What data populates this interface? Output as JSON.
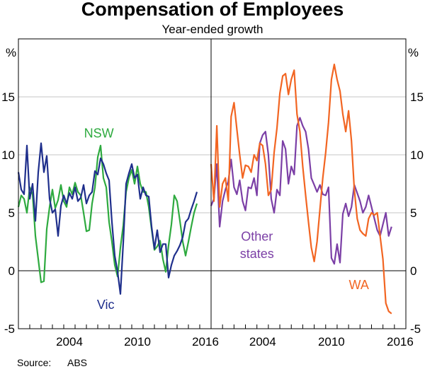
{
  "colors": {
    "nsw": "#2eaa3f",
    "vic": "#1f2f8c",
    "other": "#7b3fa6",
    "wa": "#f26522",
    "grid": "#c4c4c4",
    "axis": "#000000"
  },
  "source": {
    "label": "Source:",
    "value": "ABS"
  },
  "chart_data": {
    "type": "line",
    "title": "Compensation of Employees",
    "subtitle": "Year-ended growth",
    "unit_left": "%",
    "unit_right": "%",
    "ylim": [
      -5,
      20
    ],
    "y_ticks": [
      "-5",
      "0",
      "5",
      "10",
      "15"
    ],
    "x_range": [
      2000.0,
      2017.0
    ],
    "x_ticks": [
      "2004",
      "2010",
      "2016"
    ],
    "grid": true,
    "panels": [
      {
        "series": [
          {
            "name": "NSW",
            "color_key": "nsw",
            "x": [
              2000.0,
              2000.25,
              2000.5,
              2000.75,
              2001.0,
              2001.25,
              2001.5,
              2001.75,
              2002.0,
              2002.25,
              2002.5,
              2002.75,
              2003.0,
              2003.25,
              2003.5,
              2003.75,
              2004.0,
              2004.25,
              2004.5,
              2004.75,
              2005.0,
              2005.25,
              2005.5,
              2005.75,
              2006.0,
              2006.25,
              2006.5,
              2006.75,
              2007.0,
              2007.25,
              2007.5,
              2007.75,
              2008.0,
              2008.25,
              2008.5,
              2008.75,
              2009.0,
              2009.25,
              2009.5,
              2009.75,
              2010.0,
              2010.25,
              2010.5,
              2010.75,
              2011.0,
              2011.25,
              2011.5,
              2011.75,
              2012.0,
              2012.25,
              2012.5,
              2012.75,
              2013.0,
              2013.25,
              2013.5,
              2013.75,
              2014.0,
              2014.25,
              2014.5,
              2014.75,
              2015.0,
              2015.25,
              2015.5,
              2015.75
            ],
            "values": [
              5.5,
              6.5,
              6.2,
              5.0,
              7.2,
              6.6,
              3.0,
              1.0,
              -1.0,
              -0.9,
              3.6,
              5.5,
              7.0,
              5.4,
              6.1,
              7.4,
              6.0,
              5.5,
              7.2,
              6.6,
              7.6,
              6.8,
              6.5,
              5.0,
              3.4,
              3.5,
              5.8,
              7.2,
              9.8,
              10.8,
              8.0,
              7.2,
              4.2,
              2.5,
              0.5,
              -0.5,
              2.0,
              3.9,
              6.8,
              8.0,
              8.7,
              7.5,
              9.0,
              7.5,
              6.8,
              6.8,
              5.5,
              3.6,
              1.8,
              2.1,
              2.6,
              1.0,
              -0.1,
              2.2,
              4.0,
              6.5,
              6.0,
              4.3,
              2.5,
              1.3,
              2.5,
              3.8,
              5.0,
              5.8
            ]
          },
          {
            "name": "Vic",
            "color_key": "vic",
            "x": [
              2000.0,
              2000.25,
              2000.5,
              2000.75,
              2001.0,
              2001.25,
              2001.5,
              2001.75,
              2002.0,
              2002.25,
              2002.5,
              2002.75,
              2003.0,
              2003.25,
              2003.5,
              2003.75,
              2004.0,
              2004.25,
              2004.5,
              2004.75,
              2005.0,
              2005.25,
              2005.5,
              2005.75,
              2006.0,
              2006.25,
              2006.5,
              2006.75,
              2007.0,
              2007.25,
              2007.5,
              2007.75,
              2008.0,
              2008.25,
              2008.5,
              2008.75,
              2009.0,
              2009.25,
              2009.5,
              2009.75,
              2010.0,
              2010.25,
              2010.5,
              2010.75,
              2011.0,
              2011.25,
              2011.5,
              2011.75,
              2012.0,
              2012.25,
              2012.5,
              2012.75,
              2013.0,
              2013.25,
              2013.5,
              2013.75,
              2014.0,
              2014.25,
              2014.5,
              2014.75,
              2015.0,
              2015.25,
              2015.5,
              2015.75
            ],
            "values": [
              8.5,
              7.0,
              6.6,
              10.8,
              6.2,
              7.5,
              4.3,
              8.5,
              11.0,
              8.5,
              9.9,
              6.2,
              5.0,
              5.3,
              3.0,
              5.6,
              6.5,
              5.8,
              6.7,
              6.2,
              7.2,
              6.0,
              6.3,
              7.4,
              5.8,
              6.5,
              6.8,
              8.6,
              8.3,
              9.7,
              9.2,
              8.4,
              7.8,
              4.2,
              1.3,
              -0.1,
              -2.0,
              2.4,
              7.5,
              8.4,
              9.2,
              8.0,
              8.3,
              6.2,
              7.2,
              6.5,
              6.4,
              3.8,
              1.9,
              3.5,
              1.6,
              2.3,
              2.3,
              -0.6,
              0.5,
              1.3,
              1.7,
              2.2,
              2.9,
              4.2,
              4.5,
              5.3,
              6.0,
              6.8
            ]
          }
        ],
        "labels": [
          {
            "text": "NSW",
            "color_key": "nsw",
            "x": 2007.1,
            "y": 11.5
          },
          {
            "text": "Vic",
            "color_key": "vic",
            "x": 2007.7,
            "y": -3.3
          }
        ]
      },
      {
        "series": [
          {
            "name": "Other states",
            "color_key": "other",
            "x": [
              2000.0,
              2000.25,
              2000.5,
              2000.75,
              2001.0,
              2001.25,
              2001.5,
              2001.75,
              2002.0,
              2002.25,
              2002.5,
              2002.75,
              2003.0,
              2003.25,
              2003.5,
              2003.75,
              2004.0,
              2004.25,
              2004.5,
              2004.75,
              2005.0,
              2005.25,
              2005.5,
              2005.75,
              2006.0,
              2006.25,
              2006.5,
              2006.75,
              2007.0,
              2007.25,
              2007.5,
              2007.75,
              2008.0,
              2008.25,
              2008.5,
              2008.75,
              2009.0,
              2009.25,
              2009.5,
              2009.75,
              2010.0,
              2010.25,
              2010.5,
              2010.75,
              2011.0,
              2011.25,
              2011.5,
              2011.75,
              2012.0,
              2012.25,
              2012.5,
              2012.75,
              2013.0,
              2013.25,
              2013.5,
              2013.75,
              2014.0,
              2014.25,
              2014.5,
              2014.75,
              2015.0,
              2015.25,
              2015.5,
              2015.75
            ],
            "values": [
              5.6,
              6.2,
              9.2,
              3.8,
              6.0,
              7.0,
              7.7,
              9.6,
              7.2,
              6.6,
              7.8,
              6.0,
              5.2,
              7.2,
              7.1,
              8.0,
              6.5,
              11.0,
              11.7,
              12.0,
              10.0,
              6.2,
              5.0,
              7.0,
              6.5,
              11.2,
              10.5,
              7.5,
              9.0,
              8.3,
              12.5,
              13.2,
              12.5,
              12.0,
              10.5,
              8.0,
              7.4,
              6.8,
              7.4,
              6.6,
              6.5,
              7.2,
              1.1,
              0.6,
              2.3,
              0.7,
              4.9,
              5.8,
              4.7,
              5.5,
              7.4,
              6.7,
              6.0,
              5.0,
              5.5,
              6.5,
              5.5,
              4.5,
              3.5,
              3.0,
              4.0,
              5.0,
              3.0,
              3.8
            ]
          },
          {
            "name": "WA",
            "color_key": "wa",
            "x": [
              2000.0,
              2000.25,
              2000.5,
              2000.75,
              2001.0,
              2001.25,
              2001.5,
              2001.75,
              2002.0,
              2002.25,
              2002.5,
              2002.75,
              2003.0,
              2003.25,
              2003.5,
              2003.75,
              2004.0,
              2004.25,
              2004.5,
              2004.75,
              2005.0,
              2005.25,
              2005.5,
              2005.75,
              2006.0,
              2006.25,
              2006.5,
              2006.75,
              2007.0,
              2007.25,
              2007.5,
              2007.75,
              2008.0,
              2008.25,
              2008.5,
              2008.75,
              2009.0,
              2009.25,
              2009.5,
              2009.75,
              2010.0,
              2010.25,
              2010.5,
              2010.75,
              2011.0,
              2011.25,
              2011.5,
              2011.75,
              2012.0,
              2012.25,
              2012.5,
              2012.75,
              2013.0,
              2013.25,
              2013.5,
              2013.75,
              2014.0,
              2014.25,
              2014.5,
              2014.75,
              2015.0,
              2015.25,
              2015.5,
              2015.75
            ],
            "values": [
              9.2,
              6.0,
              12.5,
              5.5,
              7.5,
              8.0,
              6.0,
              13.3,
              14.5,
              12.2,
              10.0,
              8.0,
              9.1,
              9.0,
              8.5,
              10.0,
              9.5,
              11.0,
              10.8,
              9.2,
              6.5,
              7.0,
              10.2,
              12.3,
              15.3,
              16.8,
              17.0,
              15.2,
              16.5,
              17.3,
              13.5,
              12.0,
              9.0,
              6.5,
              4.2,
              2.0,
              0.8,
              2.5,
              5.3,
              8.0,
              10.2,
              12.8,
              16.5,
              17.8,
              16.5,
              15.5,
              13.5,
              12.0,
              13.8,
              11.2,
              7.0,
              4.5,
              3.5,
              3.2,
              3.0,
              4.5,
              5.0,
              4.8,
              5.0,
              3.0,
              1.0,
              -2.8,
              -3.5,
              -3.7
            ]
          }
        ],
        "labels": [
          {
            "text": "Other",
            "color_key": "other",
            "x": 2004.0,
            "y": 2.6
          },
          {
            "text": "states",
            "color_key": "other",
            "x": 2004.0,
            "y": 1.1
          },
          {
            "text": "WA",
            "color_key": "wa",
            "x": 2012.9,
            "y": -1.6
          }
        ]
      }
    ]
  }
}
